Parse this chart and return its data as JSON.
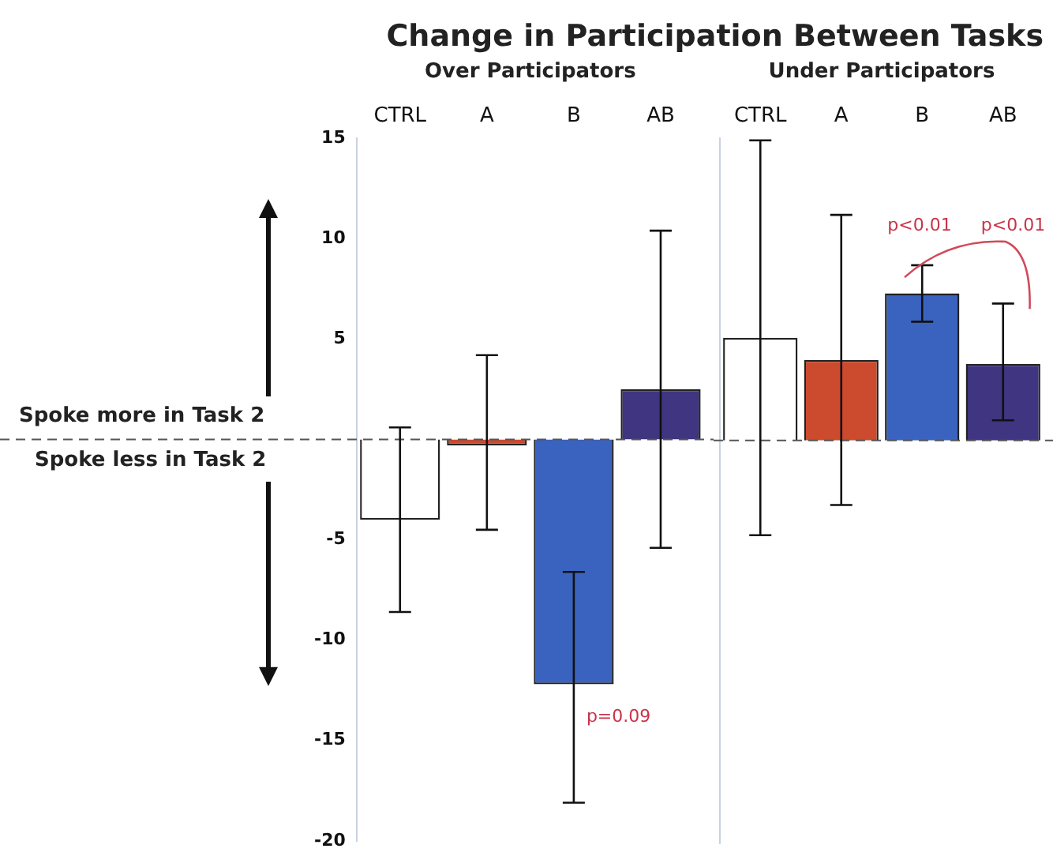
{
  "chart_data": [
    {
      "type": "bar",
      "title": "Change in Participation Between Tasks",
      "categories": [
        "CTRL",
        "A",
        "B",
        "AB"
      ],
      "values": [
        -4.0,
        -0.3,
        -12.2,
        2.5
      ],
      "colors": [
        "#ffffff",
        "#cc4a2e",
        "#3a63c0",
        "#3f3580"
      ],
      "errors": [
        [
          -8.6,
          0.6
        ],
        [
          -4.5,
          4.2
        ],
        [
          -18.1,
          -6.6
        ],
        [
          -5.4,
          10.4
        ]
      ],
      "ylim": [
        -20,
        15
      ],
      "yticks": [
        -20,
        -15,
        -10,
        -5,
        5,
        10,
        15
      ],
      "grid": false,
      "legend": false,
      "ref_lines": [
        {
          "axis": "y",
          "value": 0,
          "line_style": "dashed",
          "color": "#555555"
        }
      ],
      "annotations": [
        "Over Participators",
        "Spoke more in Task 2",
        "Spoke less in Task 2",
        "p=0.09"
      ]
    },
    {
      "type": "bar",
      "categories": [
        "CTRL",
        "A",
        "B",
        "AB"
      ],
      "values": [
        5.1,
        4.0,
        7.3,
        3.8
      ],
      "colors": [
        "#ffffff",
        "#cc4a2e",
        "#3a63c0",
        "#3f3580"
      ],
      "errors": [
        [
          -4.7,
          14.9
        ],
        [
          -3.2,
          11.2
        ],
        [
          5.9,
          8.7
        ],
        [
          1.0,
          6.8
        ]
      ],
      "ylim": [
        -20,
        15
      ],
      "yticks": [
        -20,
        -15,
        -10,
        -5,
        5,
        10,
        15
      ],
      "tick_labels": "x",
      "grid": false,
      "legend": false,
      "ref_lines": [
        {
          "axis": "y",
          "value": 0,
          "line_style": "dashed",
          "color": "#555555"
        }
      ],
      "annotations": [
        "Under Participators",
        "p<0.01",
        "p<0.01"
      ]
    }
  ]
}
